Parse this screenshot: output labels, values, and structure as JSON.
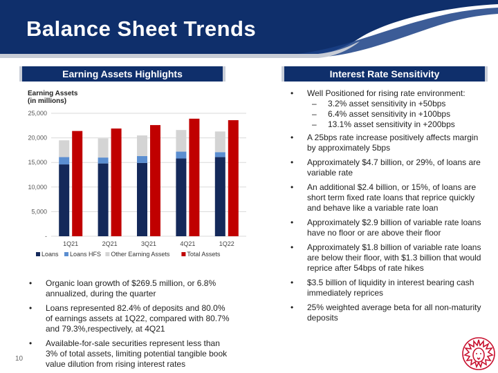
{
  "slide": {
    "title": "Balance Sheet Trends",
    "page_number": "10"
  },
  "left_section": {
    "header": "Earning Assets Highlights",
    "bullets": [
      "Organic loan growth of $269.5 million, or 6.8% annualized, during the quarter",
      "Loans represented 82.4% of deposits and 80.0% of earnings assets at 1Q22, compared with 80.7% and 79.3%,respectively, at 4Q21",
      "Available-for-sale securities represent less than 3% of total assets, limiting potential tangible book value dilution from rising interest rates"
    ]
  },
  "right_section": {
    "header": "Interest Rate Sensitivity",
    "bullet_0": "Well Positioned for rising rate environment:",
    "sub_bullets": [
      "3.2% asset sensitivity in +50bps",
      "6.4% asset sensitivity in +100bps",
      "13.1% asset sensitivity in +200bps"
    ],
    "bullets": [
      "A 25bps rate increase positively affects margin by approximately 5bps",
      "Approximately $4.7 billion, or 29%, of loans are variable rate",
      "An additional $2.4 billion, or 15%, of loans are short term fixed rate loans that reprice quickly and behave like a variable rate loan",
      "Approximately $2.9 billion of variable rate loans have no floor or are above their floor",
      "Approximately $1.8 billion of variable rate loans are below their floor, with $1.3 billion that would reprice after 54bps of rate hikes",
      "$3.5 billion of liquidity in interest bearing cash immediately reprices",
      "25% weighted average beta for all non-maturity deposits"
    ]
  },
  "chart_data": {
    "type": "bar",
    "title": "Earning Assets",
    "subtitle": "(in millions)",
    "categories": [
      "1Q21",
      "2Q21",
      "3Q21",
      "4Q21",
      "1Q22"
    ],
    "ylim": [
      0,
      25000
    ],
    "yticks": [
      "-",
      "5,000",
      "10,000",
      "15,000",
      "20,000",
      "25,000"
    ],
    "ytick_values": [
      0,
      5000,
      10000,
      15000,
      20000,
      25000
    ],
    "stacked_series": [
      {
        "name": "Loans",
        "color": "#14295a",
        "values": [
          14600,
          14800,
          14900,
          15800,
          16100
        ]
      },
      {
        "name": "Loans HFS",
        "color": "#5b8ed0",
        "values": [
          1500,
          1200,
          1400,
          1400,
          1000
        ]
      },
      {
        "name": "Other Earning Assets",
        "color": "#d4d4d4",
        "values": [
          3400,
          3900,
          4200,
          4400,
          4200
        ]
      }
    ],
    "side_series": {
      "name": "Total Assets",
      "color": "#c00000",
      "values": [
        21400,
        21900,
        22600,
        23900,
        23600
      ]
    },
    "grid": true,
    "legend_position": "bottom"
  },
  "colors": {
    "navy": "#0f2f6b",
    "accent_red": "#c8102e"
  }
}
